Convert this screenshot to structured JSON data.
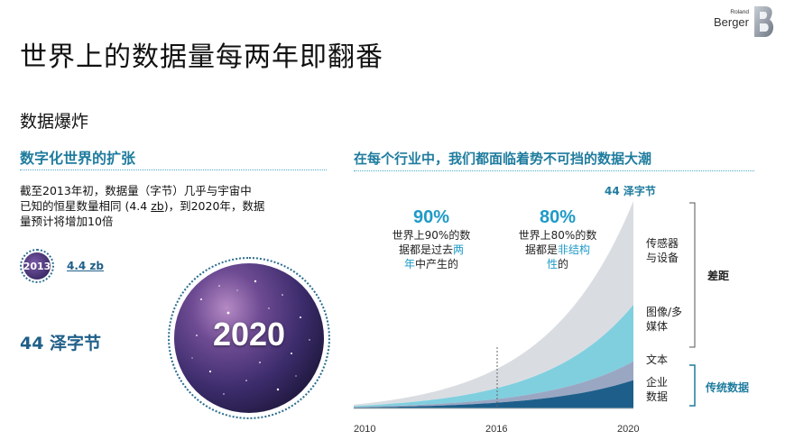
{
  "header": {
    "title": "世界上的数据量每两年即翻番",
    "logo": {
      "line1": "Roland",
      "line2": "Berger"
    }
  },
  "subtitle": "数据爆炸",
  "left": {
    "heading": "数字化世界的扩张",
    "body_line1": "截至2013年初，数据量（字节）几乎与宇宙中",
    "body_line2_pre": "已知的恒星数量相同 (4.4 ",
    "body_line2_zb": "zb",
    "body_line2_post": ")，到2020年，数据",
    "body_line3": "量预计将增加10倍",
    "badge_year": "2013",
    "badge_value": "4.4 zb",
    "big_value": "44 泽字节",
    "galaxy_year": "2020"
  },
  "right": {
    "heading": "在每个行业中，我们都面临着势不可挡的数据大潮",
    "top_value": "44 泽字节",
    "stat1": {
      "pct": "90%",
      "l1": "世界上90%的数",
      "l2a": "据都是过去",
      "l2b": "两",
      "l3a": "年",
      "l3b": "中产生的"
    },
    "stat2": {
      "pct": "80%",
      "l1": "世界上80%的数",
      "l2a": "据都是",
      "l2b": "非结构",
      "l3a": "性",
      "l3b": "的"
    },
    "labels": {
      "sensor": "传感器与设备",
      "image": "图像/多媒体",
      "text": "文本",
      "enterprise": "企业数据",
      "gap": "差距",
      "traditional": "传统数据"
    },
    "ticks": [
      "2010",
      "2016",
      "2020"
    ]
  },
  "colors": {
    "accent": "#1f7c9e",
    "highlight": "#1f9ac7",
    "sensor_area": "#d9dde2",
    "image_area": "#7fcfdf",
    "text_area": "#9aa7c3",
    "enterprise_area": "#1d5f8a"
  },
  "chart_data": {
    "type": "area",
    "title": "",
    "x": [
      "2010",
      "2016",
      "2020"
    ],
    "series": [
      {
        "name": "企业数据",
        "values": [
          0.2,
          1.2,
          6
        ]
      },
      {
        "name": "文本",
        "values": [
          0.1,
          0.6,
          4
        ]
      },
      {
        "name": "图像/多媒体",
        "values": [
          0.2,
          1.5,
          12
        ]
      },
      {
        "name": "传感器与设备",
        "values": [
          0.3,
          2.5,
          22
        ]
      }
    ],
    "top_total_label": "44 泽字节",
    "brackets": [
      {
        "label": "差距",
        "covers": [
          "传感器与设备",
          "图像/多媒体",
          "文本"
        ]
      },
      {
        "label": "传统数据",
        "covers": [
          "企业数据"
        ]
      }
    ],
    "marker_x": "2016",
    "grid": false,
    "legend": "right"
  }
}
